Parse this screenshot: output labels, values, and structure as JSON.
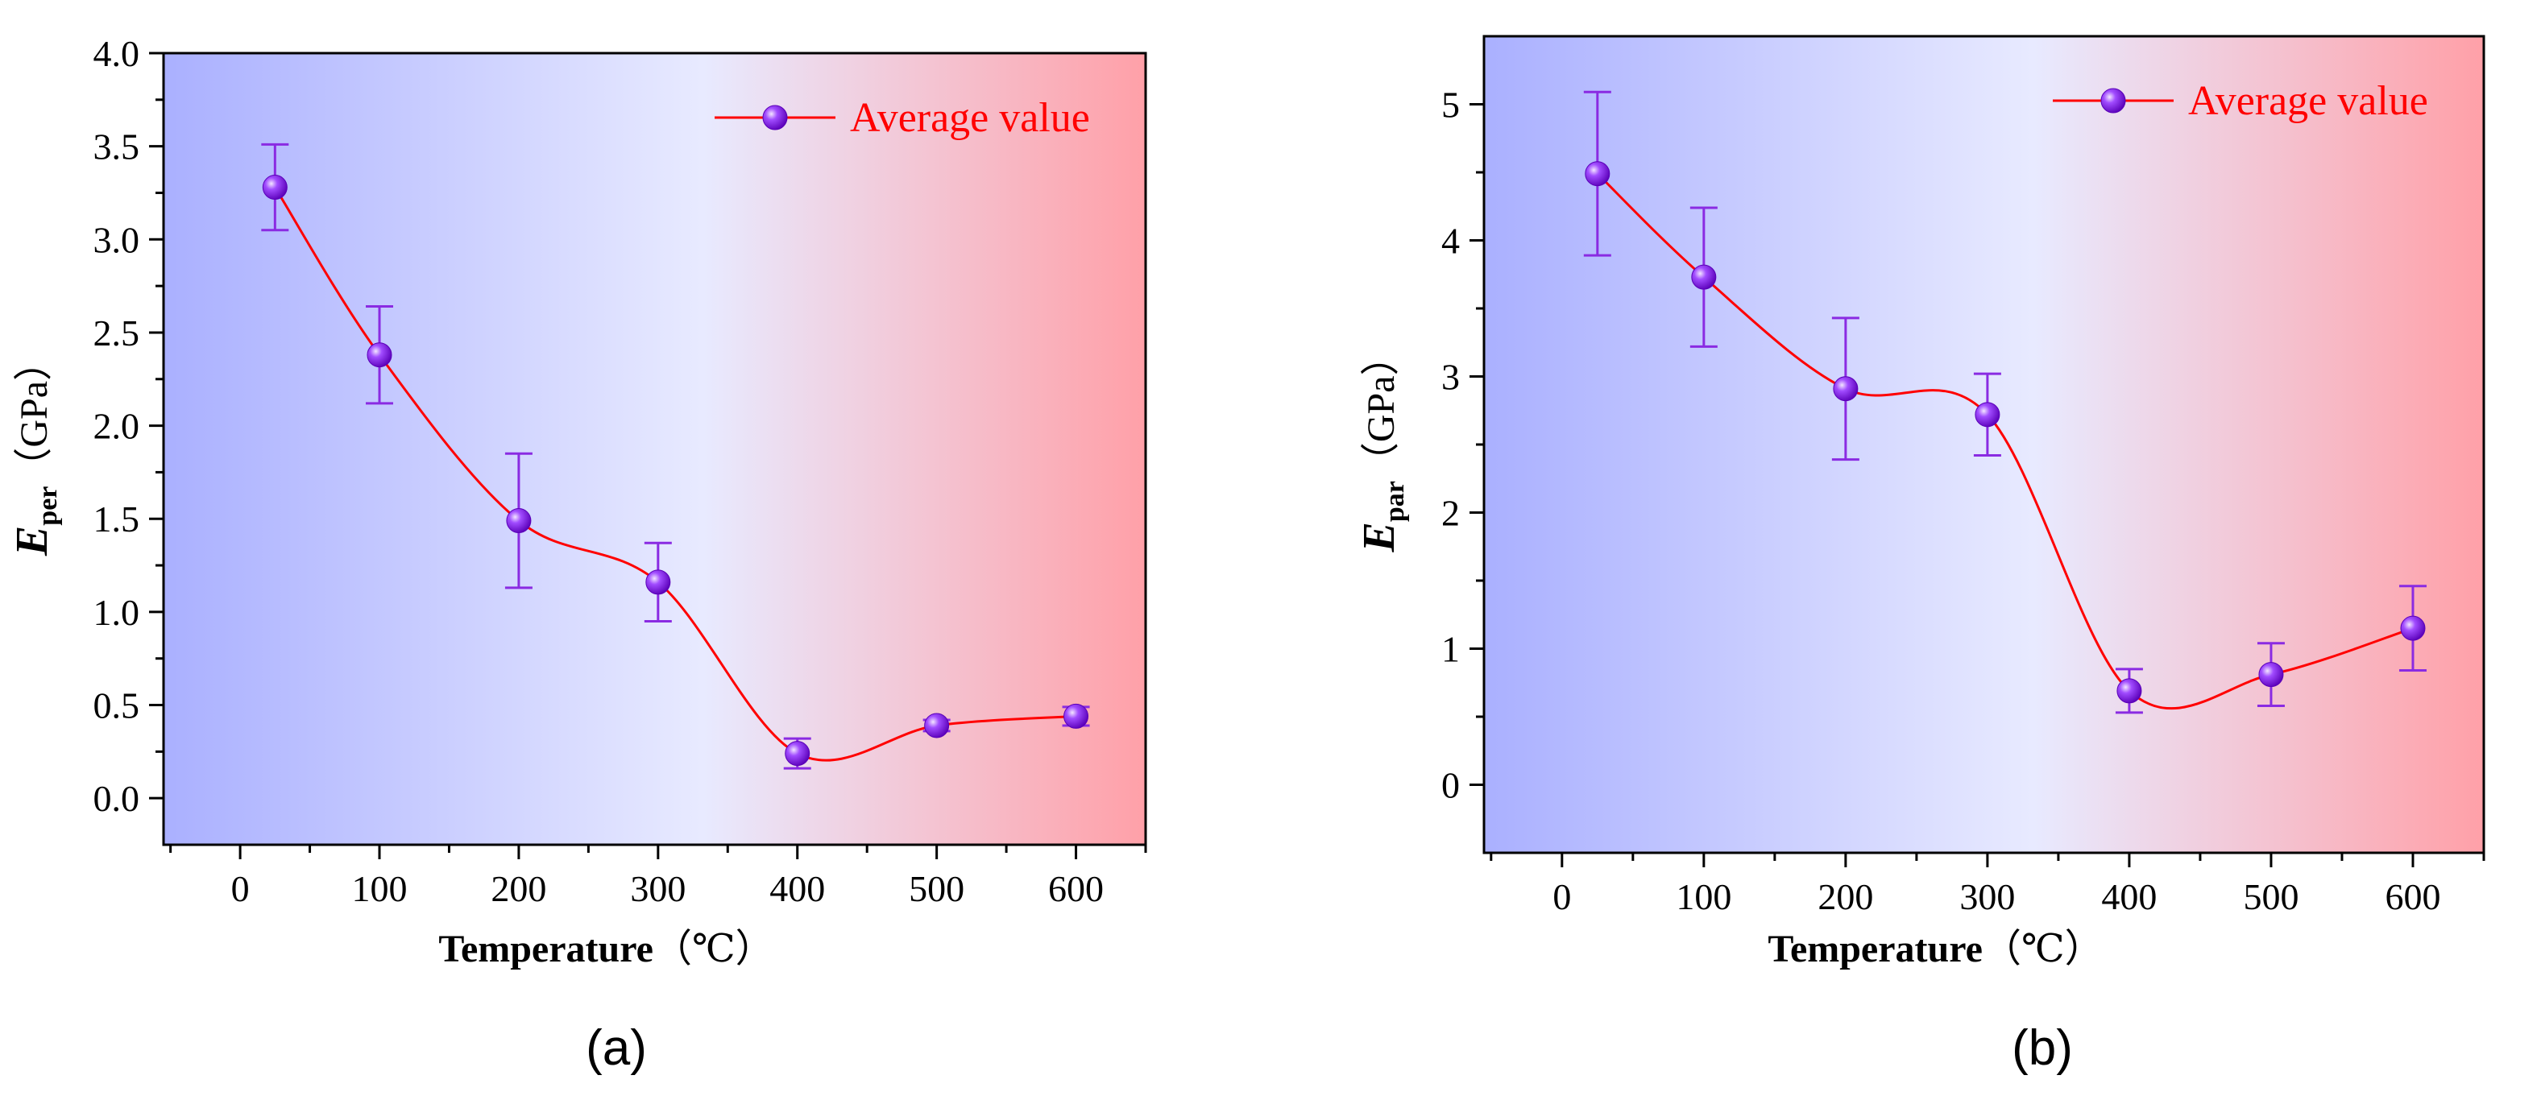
{
  "chart_data": [
    {
      "type": "line",
      "panel_label": "(a)",
      "x": [
        25,
        100,
        200,
        300,
        400,
        500,
        600
      ],
      "series": [
        {
          "name": "Average value",
          "values": [
            3.28,
            2.38,
            1.49,
            1.16,
            0.24,
            0.39,
            0.44
          ],
          "error": [
            0.23,
            0.26,
            0.36,
            0.21,
            0.08,
            0.03,
            0.05
          ],
          "color": "#ff0000",
          "marker_color": "#8a2be2"
        }
      ],
      "xlabel": "Temperature",
      "xlabel_unit": "（℃）",
      "ylabel_symbol": "E",
      "ylabel_sub": "per",
      "ylabel_unit": "（GPa）",
      "xlim": [
        -55,
        650
      ],
      "ylim": [
        -0.25,
        4.0
      ],
      "xticks": [
        0,
        100,
        200,
        300,
        400,
        500,
        600
      ],
      "yticks": [
        0.0,
        0.5,
        1.0,
        1.5,
        2.0,
        2.5,
        3.0,
        3.5,
        4.0
      ],
      "ytick_labels": [
        "0.0",
        "0.5",
        "1.0",
        "1.5",
        "2.0",
        "2.5",
        "3.0",
        "3.5",
        "4.0"
      ],
      "legend_position": "top-right",
      "background_gradient": [
        "#aab0ff",
        "#e8eaff",
        "#ffa0a8"
      ]
    },
    {
      "type": "line",
      "panel_label": "(b)",
      "x": [
        25,
        100,
        200,
        300,
        400,
        500,
        600
      ],
      "series": [
        {
          "name": "Average value",
          "values": [
            4.49,
            3.73,
            2.91,
            2.72,
            0.69,
            0.81,
            1.15
          ],
          "error": [
            0.6,
            0.51,
            0.52,
            0.3,
            0.16,
            0.23,
            0.31
          ],
          "color": "#ff0000",
          "marker_color": "#8a2be2"
        }
      ],
      "xlabel": "Temperature",
      "xlabel_unit": "（℃）",
      "ylabel_symbol": "E",
      "ylabel_sub": "par",
      "ylabel_unit": "（GPa）",
      "xlim": [
        -55,
        650
      ],
      "ylim": [
        -0.5,
        5.5
      ],
      "xticks": [
        0,
        100,
        200,
        300,
        400,
        500,
        600
      ],
      "yticks": [
        0,
        1,
        2,
        3,
        4,
        5
      ],
      "ytick_labels": [
        "0",
        "1",
        "2",
        "3",
        "4",
        "5"
      ],
      "legend_position": "top-right",
      "background_gradient": [
        "#aab0ff",
        "#e8eaff",
        "#ffa0a8"
      ]
    }
  ]
}
